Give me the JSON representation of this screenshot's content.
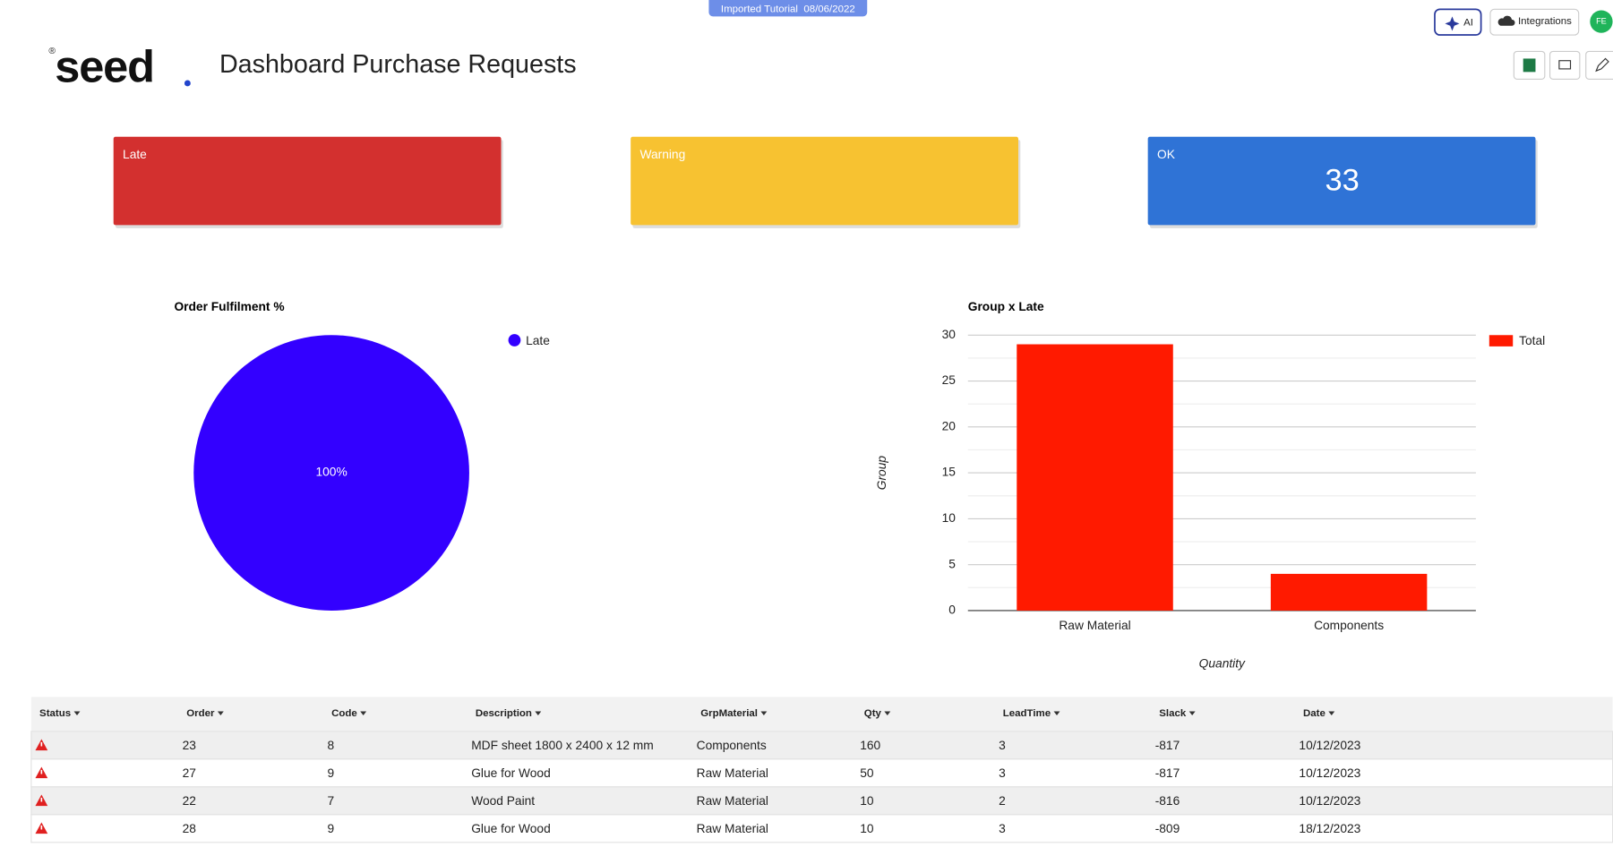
{
  "header": {
    "badge": "Imported Tutorial  08/06/2022",
    "ai_button": "AI",
    "integrations_button": "Integrations",
    "avatar": "FE",
    "logo": "seed",
    "title": "Dashboard Purchase Requests"
  },
  "cards": [
    {
      "label": "Late",
      "color": "#d3302f"
    },
    {
      "label": "Warning",
      "color": "#f7c231"
    },
    {
      "label": "OK",
      "value": 33,
      "color": "#2f73d6"
    }
  ],
  "chart_data": [
    {
      "type": "pie",
      "title": "Order Fulfilment %",
      "categories": [
        "Late"
      ],
      "values": [
        100
      ],
      "value_labels": [
        "100%"
      ],
      "colors": [
        "#3300ff"
      ],
      "legend": "right"
    },
    {
      "type": "bar",
      "title": "Group x Late",
      "y_label": "Group",
      "x_label": "Quantity",
      "categories": [
        "Raw Material",
        "Components"
      ],
      "series": [
        {
          "name": "Total",
          "color": "#ff1a00",
          "values": [
            29,
            4
          ]
        }
      ],
      "ylim": [
        0,
        30
      ],
      "yticks": [
        0,
        5,
        10,
        15,
        20,
        25,
        30
      ],
      "grid": true,
      "legend": "right"
    }
  ],
  "table": {
    "columns": [
      "Status",
      "Order",
      "Code",
      "Description",
      "GrpMaterial",
      "Qty",
      "LeadTime",
      "Slack",
      "Date"
    ],
    "rows": [
      [
        "23",
        "8",
        "MDF sheet 1800 x 2400 x 12 mm",
        "Components",
        "160",
        "3",
        "-817",
        "10/12/2023"
      ],
      [
        "27",
        "9",
        "Glue for Wood",
        "Raw Material",
        "50",
        "3",
        "-817",
        "10/12/2023"
      ],
      [
        "22",
        "7",
        "Wood Paint",
        "Raw Material",
        "10",
        "2",
        "-816",
        "10/12/2023"
      ],
      [
        "28",
        "9",
        "Glue for Wood",
        "Raw Material",
        "10",
        "3",
        "-809",
        "18/12/2023"
      ]
    ]
  }
}
